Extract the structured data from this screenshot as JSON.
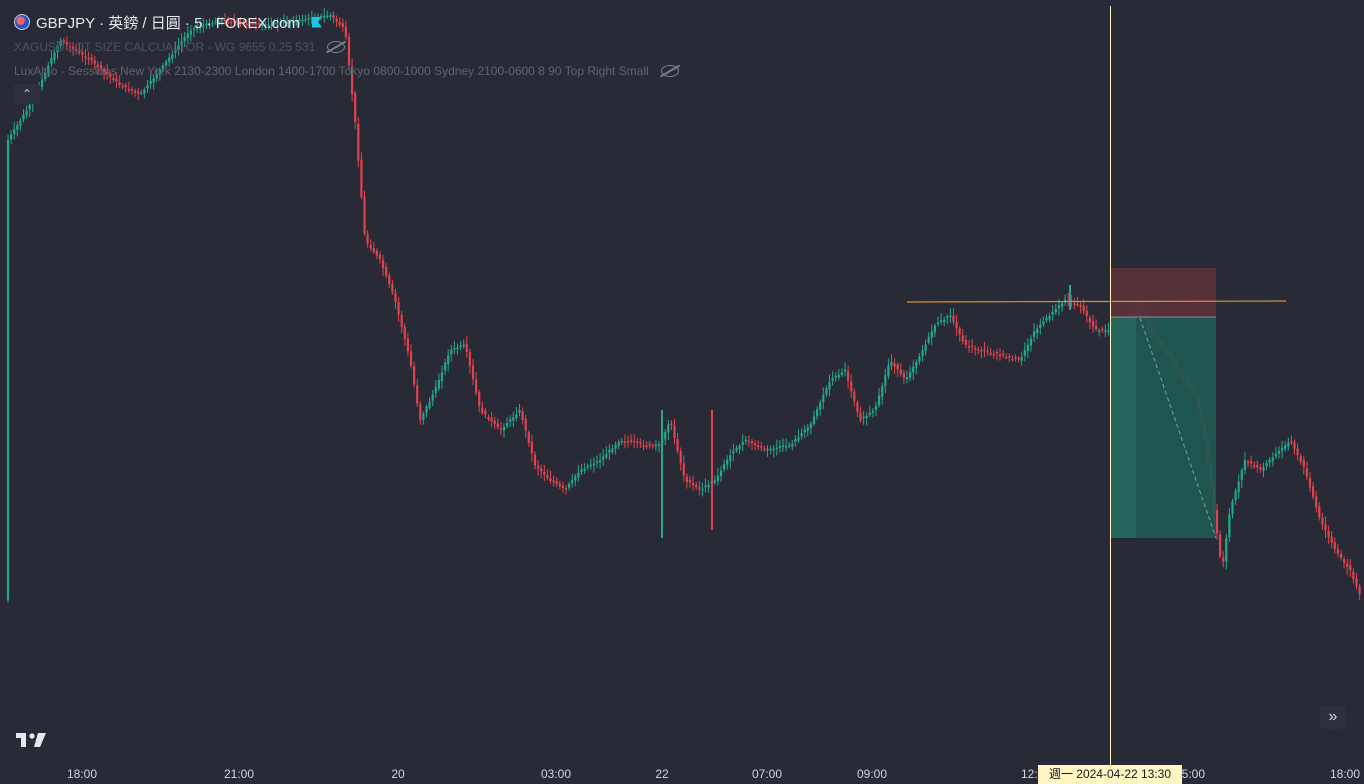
{
  "header": {
    "symbol_line": "GBPJPY · 英鎊 / 日圓 · 5 · FOREX.com",
    "indicators": [
      {
        "label": "XAGUSD LOT SIZE CALCUALTOR - WG 9655 0.25 531"
      },
      {
        "label": "LuxAlgo - Sessions New York 2130-2300 London 1400-1700 Tokyo 0800-1000 Sydney 2100-0600 8 90 Top Right Small"
      }
    ]
  },
  "time_axis": {
    "ticks": [
      "18:00",
      "21:00",
      "20",
      "03:00",
      "22",
      "07:00",
      "09:00",
      "12:00",
      "15:00",
      "18:00"
    ],
    "crosshair_label": "週一 2024-04-22   13:30"
  },
  "colors": {
    "background": "#282b35",
    "bull": "#22a88f",
    "bear": "#e0434f",
    "horizontal_line": "#d8903a",
    "crosshair": "#fff6c4",
    "stop_zone": "#5a313b",
    "target_zone": "#1e5a52"
  },
  "icons": {
    "flag": "gbp-jpy-flag-icon",
    "eye_hidden": "eye-off-icon",
    "collapse": "chevron-up-icon",
    "go_to_realtime": "double-chevron-right-icon",
    "logo": "tradingview-logo-icon"
  }
}
